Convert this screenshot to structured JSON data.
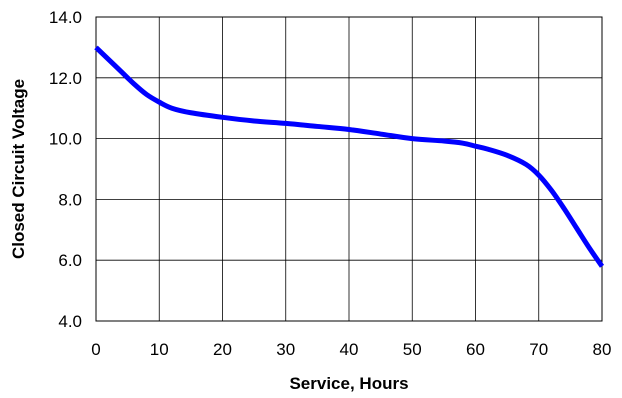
{
  "chart_data": {
    "type": "line",
    "title": "",
    "xlabel": "Service, Hours",
    "ylabel": "Closed Circuit Voltage",
    "xlim": [
      0,
      80
    ],
    "ylim": [
      4.0,
      14.0
    ],
    "x_ticks": [
      "0",
      "10",
      "20",
      "30",
      "40",
      "50",
      "60",
      "70",
      "80"
    ],
    "y_ticks": [
      "4.0",
      "6.0",
      "8.0",
      "10.0",
      "12.0",
      "14.0"
    ],
    "grid": true,
    "legend": "none",
    "line_color": "#0000ff",
    "series": [
      {
        "x": [
          0,
          2,
          4,
          6,
          8,
          10,
          12,
          15,
          20,
          25,
          30,
          35,
          40,
          45,
          50,
          55,
          58,
          60,
          62,
          65,
          68,
          70,
          72,
          74,
          76,
          78,
          80
        ],
        "y": [
          13.0,
          12.6,
          12.2,
          11.8,
          11.45,
          11.2,
          11.0,
          10.85,
          10.7,
          10.58,
          10.5,
          10.4,
          10.3,
          10.15,
          10.0,
          9.92,
          9.85,
          9.75,
          9.65,
          9.45,
          9.15,
          8.8,
          8.3,
          7.7,
          7.05,
          6.4,
          5.8
        ]
      }
    ]
  }
}
